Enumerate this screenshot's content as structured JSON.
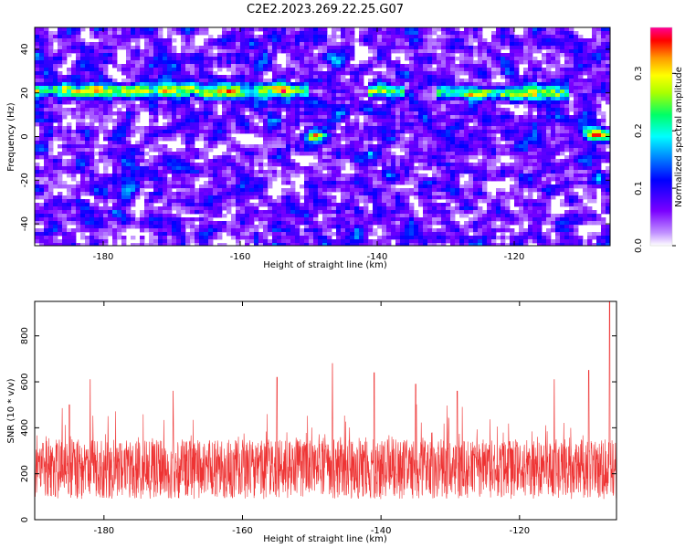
{
  "figure_title": "C2E2.2023.269.22.25.G07",
  "chart_data": [
    {
      "type": "heatmap",
      "xlabel": "Height of straight line (km)",
      "ylabel": "Frequency (Hz)",
      "xlim": [
        -190,
        -106
      ],
      "ylim": [
        -50,
        50
      ],
      "x_ticks": [
        -180,
        -160,
        -140,
        -120
      ],
      "y_ticks": [
        -40,
        -20,
        0,
        20,
        40
      ],
      "grid": false,
      "colorbar": {
        "label": "Normalized spectral amplitude",
        "range": [
          0,
          0.38
        ],
        "ticks": [
          0.0,
          0.1,
          0.2,
          0.3
        ]
      },
      "features": [
        {
          "feature": "ridge",
          "frequency_hz": 21,
          "x_from": -190,
          "x_to": -150
        },
        {
          "feature": "ridge",
          "frequency_hz": 21,
          "x_from": -141,
          "x_to": -136
        },
        {
          "feature": "ridge",
          "frequency_hz": 20,
          "x_from": -131,
          "x_to": -112
        },
        {
          "feature": "blob",
          "frequency_hz": 0,
          "x": -149
        },
        {
          "feature": "blob",
          "frequency_hz": 1,
          "x": -108
        }
      ]
    },
    {
      "type": "line",
      "xlabel": "Height of straight line (km)",
      "ylabel": "SNR (10 * v/v)",
      "xlim": [
        -190,
        -106
      ],
      "ylim": [
        0,
        950
      ],
      "x_ticks": [
        -180,
        -160,
        -140,
        -120
      ],
      "y_ticks": [
        0,
        200,
        400,
        600,
        800
      ],
      "grid": false,
      "series_color": "#ee3333",
      "baseline": 220,
      "peaks": [
        {
          "x": -185,
          "y": 500
        },
        {
          "x": -182,
          "y": 610
        },
        {
          "x": -170,
          "y": 560
        },
        {
          "x": -155,
          "y": 620
        },
        {
          "x": -147,
          "y": 680
        },
        {
          "x": -141,
          "y": 640
        },
        {
          "x": -135,
          "y": 590
        },
        {
          "x": -129,
          "y": 560
        },
        {
          "x": -115,
          "y": 610
        },
        {
          "x": -110,
          "y": 650
        },
        {
          "x": -107,
          "y": 950
        }
      ]
    }
  ],
  "colors": {
    "colormap": [
      "#ffffff",
      "#c090ff",
      "#7a00ff",
      "#0000ff",
      "#0080ff",
      "#00ffff",
      "#00ff66",
      "#aaff00",
      "#ffff00",
      "#ff9900",
      "#ff0000",
      "#ff0099"
    ],
    "axis": "#000000"
  }
}
